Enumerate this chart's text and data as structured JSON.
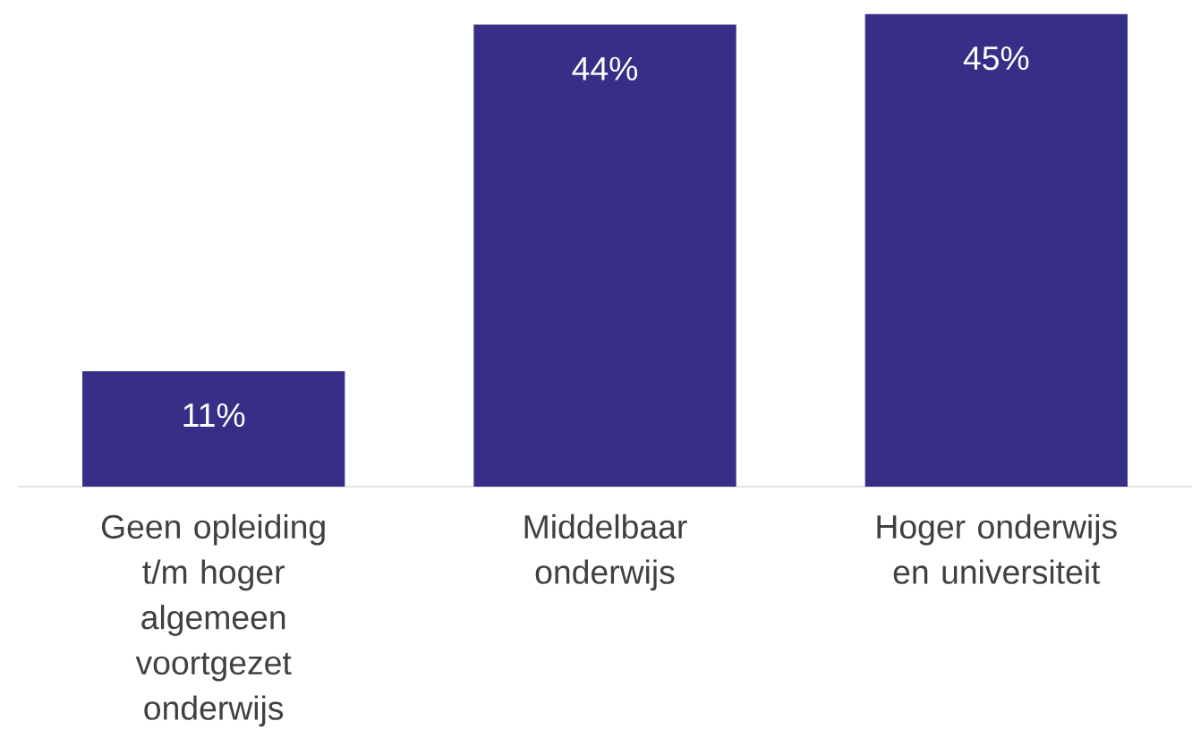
{
  "chart_data": {
    "type": "bar",
    "categories": [
      "Geen opleiding t/m hoger algemeen voortgezet onderwijs",
      "Middelbaar onderwijs",
      "Hoger onderwijs en universiteit"
    ],
    "values": [
      11,
      44,
      45
    ],
    "value_labels": [
      "11%",
      "44%",
      "45%"
    ],
    "color": "#372f87"
  }
}
